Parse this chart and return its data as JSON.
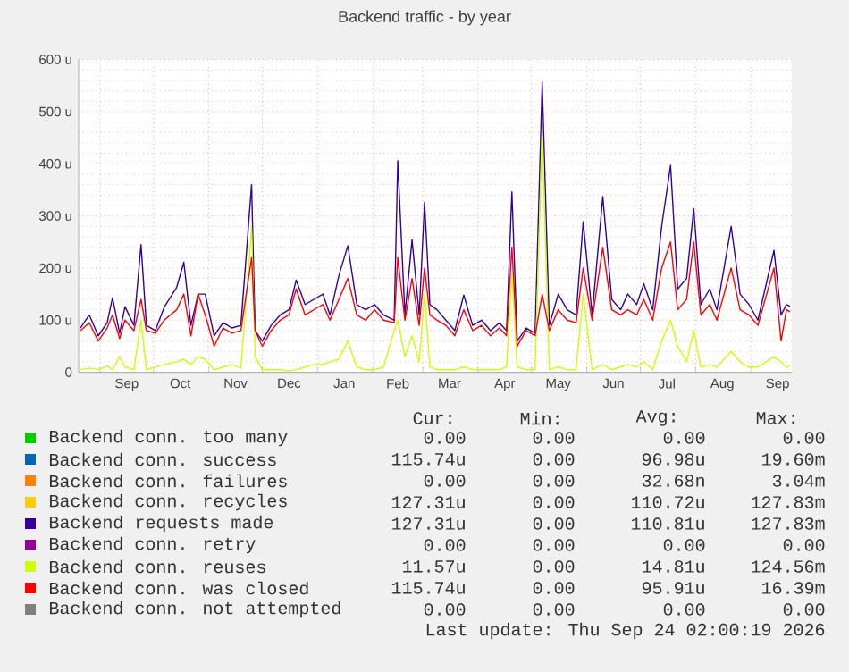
{
  "chart_data": {
    "type": "line",
    "title": "Backend traffic - by year",
    "legend": "bottom",
    "grid": true,
    "marker": "none",
    "xlim": [
      "2025-08-20",
      "2026-09-24"
    ],
    "xticks": [
      {
        "value": "2025-09-01",
        "label": null
      },
      {
        "value": "2025-09-16",
        "label": "Sep"
      },
      {
        "value": "2025-10-01",
        "label": null
      },
      {
        "value": "2025-10-16",
        "label": "Oct"
      },
      {
        "value": "2025-11-01",
        "label": null
      },
      {
        "value": "2025-11-16",
        "label": "Nov"
      },
      {
        "value": "2025-12-01",
        "label": null
      },
      {
        "value": "2025-12-16",
        "label": "Dec"
      },
      {
        "value": "2026-01-01",
        "label": null
      },
      {
        "value": "2026-01-16",
        "label": "Jan"
      },
      {
        "value": "2026-02-01",
        "label": null
      },
      {
        "value": "2026-02-15",
        "label": "Feb"
      },
      {
        "value": "2026-03-01",
        "label": null
      },
      {
        "value": "2026-03-16",
        "label": "Mar"
      },
      {
        "value": "2026-04-01",
        "label": null
      },
      {
        "value": "2026-04-16",
        "label": "Apr"
      },
      {
        "value": "2026-05-01",
        "label": null
      },
      {
        "value": "2026-05-16",
        "label": "May"
      },
      {
        "value": "2026-06-01",
        "label": null
      },
      {
        "value": "2026-06-16",
        "label": "Jun"
      },
      {
        "value": "2026-07-01",
        "label": null
      },
      {
        "value": "2026-07-16",
        "label": "Jul"
      },
      {
        "value": "2026-08-01",
        "label": null
      },
      {
        "value": "2026-08-16",
        "label": "Aug"
      },
      {
        "value": "2026-09-01",
        "label": null
      },
      {
        "value": "2026-09-16",
        "label": "Sep"
      }
    ],
    "ylim": [
      0,
      600
    ],
    "yticks": [
      0,
      {
        "value": 100,
        "label": "100 u"
      },
      {
        "value": 200,
        "label": "200 u"
      },
      {
        "value": 300,
        "label": "300 u"
      },
      {
        "value": 400,
        "label": "400 u"
      },
      {
        "value": 500,
        "label": "500 u"
      },
      {
        "value": 600,
        "label": "600 u"
      }
    ],
    "x": [
      "2025-08-21",
      "2025-08-26",
      "2025-08-31",
      "2025-09-05",
      "2025-09-08",
      "2025-09-12",
      "2025-09-15",
      "2025-09-20",
      "2025-09-24",
      "2025-09-27",
      "2025-10-02",
      "2025-10-07",
      "2025-10-14",
      "2025-10-18",
      "2025-10-22",
      "2025-10-26",
      "2025-10-30",
      "2025-11-04",
      "2025-11-09",
      "2025-11-14",
      "2025-11-19",
      "2025-11-25",
      "2025-11-27",
      "2025-12-01",
      "2025-12-06",
      "2025-12-11",
      "2025-12-16",
      "2025-12-20",
      "2025-12-25",
      "2025-12-30",
      "2026-01-04",
      "2026-01-08",
      "2026-01-13",
      "2026-01-18",
      "2026-01-23",
      "2026-01-28",
      "2026-02-02",
      "2026-02-07",
      "2026-02-13",
      "2026-02-15",
      "2026-02-19",
      "2026-02-23",
      "2026-02-27",
      "2026-03-02",
      "2026-03-05",
      "2026-03-09",
      "2026-03-14",
      "2026-03-19",
      "2026-03-24",
      "2026-03-29",
      "2026-04-03",
      "2026-04-08",
      "2026-04-13",
      "2026-04-17",
      "2026-04-20",
      "2026-04-23",
      "2026-04-28",
      "2026-05-03",
      "2026-05-07",
      "2026-05-11",
      "2026-05-16",
      "2026-05-21",
      "2026-05-26",
      "2026-05-30",
      "2026-06-04",
      "2026-06-10",
      "2026-06-15",
      "2026-06-20",
      "2026-06-24",
      "2026-06-29",
      "2026-07-03",
      "2026-07-08",
      "2026-07-13",
      "2026-07-18",
      "2026-07-22",
      "2026-07-27",
      "2026-07-31",
      "2026-08-04",
      "2026-08-09",
      "2026-08-13",
      "2026-08-21",
      "2026-08-26",
      "2026-08-31",
      "2026-09-05",
      "2026-09-14",
      "2026-09-18",
      "2026-09-21",
      "2026-09-23"
    ],
    "series": [
      {
        "name": "Backend conn. too many",
        "color": "#00cc00",
        "values": [
          null,
          null,
          null,
          null,
          null,
          null,
          null,
          null,
          null,
          null,
          null,
          null,
          null,
          null,
          null,
          null,
          null,
          null,
          null,
          null,
          null,
          null,
          null,
          null,
          null,
          null,
          null,
          null,
          null,
          null,
          null,
          null,
          null,
          null,
          null,
          null,
          null,
          null,
          null,
          null,
          null,
          null,
          null,
          null,
          null,
          null,
          null,
          null,
          null,
          null,
          null,
          null,
          null,
          null,
          null,
          null,
          null,
          null,
          null,
          null,
          null,
          null,
          null,
          null,
          null,
          null,
          null,
          null,
          null,
          null,
          null,
          null,
          null,
          null,
          null,
          null,
          null,
          null,
          null,
          null,
          null,
          null,
          null,
          null,
          null,
          null,
          null,
          null
        ]
      },
      {
        "name": "Backend conn. success",
        "color": "#0066b3",
        "values": [
          null,
          null,
          null,
          null,
          null,
          null,
          null,
          null,
          null,
          null,
          null,
          null,
          null,
          null,
          null,
          null,
          null,
          null,
          null,
          null,
          null,
          null,
          null,
          null,
          null,
          null,
          null,
          null,
          null,
          null,
          null,
          null,
          null,
          null,
          null,
          null,
          null,
          null,
          null,
          null,
          null,
          null,
          null,
          null,
          null,
          null,
          null,
          null,
          null,
          null,
          null,
          null,
          null,
          null,
          null,
          null,
          null,
          null,
          null,
          null,
          null,
          null,
          null,
          null,
          null,
          null,
          null,
          null,
          null,
          null,
          null,
          null,
          null,
          null,
          null,
          null,
          null,
          null,
          null,
          null,
          null,
          null,
          null,
          null,
          null,
          null,
          null,
          null
        ]
      },
      {
        "name": "Backend conn. failures",
        "color": "#ff8000",
        "values": [
          null,
          null,
          null,
          null,
          null,
          null,
          null,
          null,
          null,
          null,
          null,
          null,
          null,
          null,
          null,
          null,
          null,
          null,
          null,
          null,
          null,
          null,
          null,
          null,
          null,
          null,
          null,
          null,
          null,
          null,
          null,
          null,
          null,
          null,
          null,
          null,
          null,
          null,
          null,
          null,
          null,
          null,
          null,
          null,
          null,
          null,
          null,
          null,
          null,
          null,
          null,
          null,
          null,
          null,
          null,
          null,
          null,
          null,
          null,
          null,
          null,
          null,
          null,
          null,
          null,
          null,
          null,
          null,
          null,
          null,
          null,
          null,
          null,
          null,
          null,
          null,
          null,
          null,
          null,
          null,
          null,
          null,
          null,
          null,
          null,
          null,
          null,
          null
        ]
      },
      {
        "name": "Backend conn. recycles",
        "color": "#ffcc00",
        "values": [
          null,
          null,
          null,
          null,
          null,
          null,
          null,
          null,
          null,
          null,
          null,
          null,
          null,
          null,
          null,
          null,
          null,
          null,
          null,
          null,
          null,
          null,
          null,
          null,
          null,
          null,
          null,
          null,
          null,
          null,
          null,
          null,
          null,
          null,
          null,
          null,
          null,
          null,
          null,
          null,
          null,
          null,
          null,
          null,
          null,
          null,
          null,
          null,
          null,
          null,
          null,
          null,
          null,
          null,
          null,
          null,
          null,
          null,
          null,
          null,
          null,
          null,
          null,
          null,
          null,
          null,
          null,
          null,
          null,
          null,
          null,
          null,
          null,
          null,
          null,
          null,
          null,
          null,
          null,
          null,
          null,
          null,
          null,
          null,
          null,
          null,
          null,
          null
        ]
      },
      {
        "name": "Backend requests made",
        "color": "#330099",
        "values": [
          85,
          110,
          70,
          95,
          143,
          75,
          126,
          90,
          245,
          90,
          80,
          125,
          163,
          211,
          90,
          150,
          150,
          70,
          95,
          85,
          90,
          360,
          80,
          60,
          90,
          110,
          120,
          177,
          130,
          140,
          150,
          110,
          186,
          243,
          130,
          120,
          130,
          110,
          100,
          406,
          110,
          254,
          110,
          326,
          130,
          120,
          100,
          80,
          148,
          90,
          100,
          80,
          95,
          80,
          346,
          60,
          85,
          75,
          557,
          90,
          150,
          120,
          110,
          289,
          110,
          337,
          140,
          120,
          150,
          130,
          170,
          120,
          280,
          397,
          160,
          180,
          314,
          130,
          160,
          120,
          280,
          150,
          130,
          100,
          234,
          110,
          130,
          127
        ]
      },
      {
        "name": "Backend conn. retry",
        "color": "#990099",
        "values": [
          null,
          null,
          null,
          null,
          null,
          null,
          null,
          null,
          null,
          null,
          null,
          null,
          null,
          null,
          null,
          null,
          null,
          null,
          null,
          null,
          null,
          null,
          null,
          null,
          null,
          null,
          null,
          null,
          null,
          null,
          null,
          null,
          null,
          null,
          null,
          null,
          null,
          null,
          null,
          null,
          null,
          null,
          null,
          null,
          null,
          null,
          null,
          null,
          null,
          null,
          null,
          null,
          null,
          null,
          null,
          null,
          null,
          null,
          null,
          null,
          null,
          null,
          null,
          null,
          null,
          null,
          null,
          null,
          null,
          null,
          null,
          null,
          null,
          null,
          null,
          null,
          null,
          null,
          null,
          null,
          null,
          null,
          null,
          null,
          null,
          null,
          null,
          null
        ]
      },
      {
        "name": "Backend conn. reuses",
        "color": "#ccff00",
        "values": [
          5,
          8,
          5,
          12,
          5,
          30,
          10,
          5,
          100,
          5,
          10,
          15,
          20,
          25,
          15,
          30,
          25,
          5,
          10,
          15,
          8,
          278,
          30,
          5,
          5,
          5,
          3,
          5,
          10,
          15,
          15,
          20,
          25,
          60,
          10,
          5,
          5,
          10,
          80,
          100,
          30,
          70,
          20,
          150,
          10,
          5,
          5,
          5,
          10,
          5,
          5,
          5,
          5,
          10,
          189,
          10,
          5,
          5,
          452,
          5,
          10,
          5,
          5,
          150,
          5,
          15,
          5,
          10,
          15,
          10,
          20,
          5,
          60,
          100,
          50,
          20,
          80,
          10,
          15,
          10,
          40,
          20,
          10,
          10,
          30,
          20,
          10,
          12
        ]
      },
      {
        "name": "Backend conn. was closed",
        "color": "#ff0000",
        "values": [
          80,
          95,
          60,
          85,
          110,
          65,
          100,
          80,
          140,
          80,
          75,
          100,
          120,
          150,
          70,
          150,
          110,
          50,
          85,
          75,
          80,
          220,
          80,
          50,
          80,
          100,
          110,
          160,
          110,
          120,
          130,
          100,
          140,
          180,
          110,
          100,
          120,
          100,
          95,
          220,
          100,
          180,
          90,
          200,
          110,
          100,
          90,
          70,
          120,
          80,
          90,
          70,
          85,
          70,
          240,
          50,
          80,
          70,
          150,
          80,
          120,
          100,
          95,
          200,
          100,
          240,
          120,
          110,
          120,
          110,
          140,
          100,
          200,
          250,
          120,
          140,
          250,
          110,
          130,
          100,
          200,
          120,
          110,
          90,
          200,
          60,
          120,
          116
        ]
      },
      {
        "name": "Backend conn. not attempted",
        "color": "#808080",
        "values": [
          null,
          null,
          null,
          null,
          null,
          null,
          null,
          null,
          null,
          null,
          null,
          null,
          null,
          null,
          null,
          null,
          null,
          null,
          null,
          null,
          null,
          null,
          null,
          null,
          null,
          null,
          null,
          null,
          null,
          null,
          null,
          null,
          null,
          null,
          null,
          null,
          null,
          null,
          null,
          null,
          null,
          null,
          null,
          null,
          null,
          null,
          null,
          null,
          null,
          null,
          null,
          null,
          null,
          null,
          null,
          null,
          null,
          null,
          null,
          null,
          null,
          null,
          null,
          null,
          null,
          null,
          null,
          null,
          null,
          null,
          null,
          null,
          null,
          null,
          null,
          null,
          null,
          null,
          null,
          null,
          null,
          null,
          null,
          null,
          null,
          null,
          null,
          null
        ]
      }
    ],
    "annotations": [
      "Cur:",
      "Min:",
      "Avg:",
      "Max:",
      "0.00",
      "0.00",
      "0.00",
      "0.00",
      "115.74u",
      "0.00",
      "96.98u",
      "19.60m",
      "0.00",
      "0.00",
      "32.68n",
      "3.04m",
      "127.31u",
      "0.00",
      "110.72u",
      "127.83m",
      "127.31u",
      "0.00",
      "110.81u",
      "127.83m",
      "0.00",
      "0.00",
      "0.00",
      "0.00",
      "11.57u",
      "0.00",
      "14.81u",
      "124.56m",
      "115.74u",
      "0.00",
      "95.91u",
      "16.39m",
      "0.00",
      "0.00",
      "0.00",
      "0.00",
      "Last update: Thu Sep 24 02:00:19 2026"
    ]
  }
}
